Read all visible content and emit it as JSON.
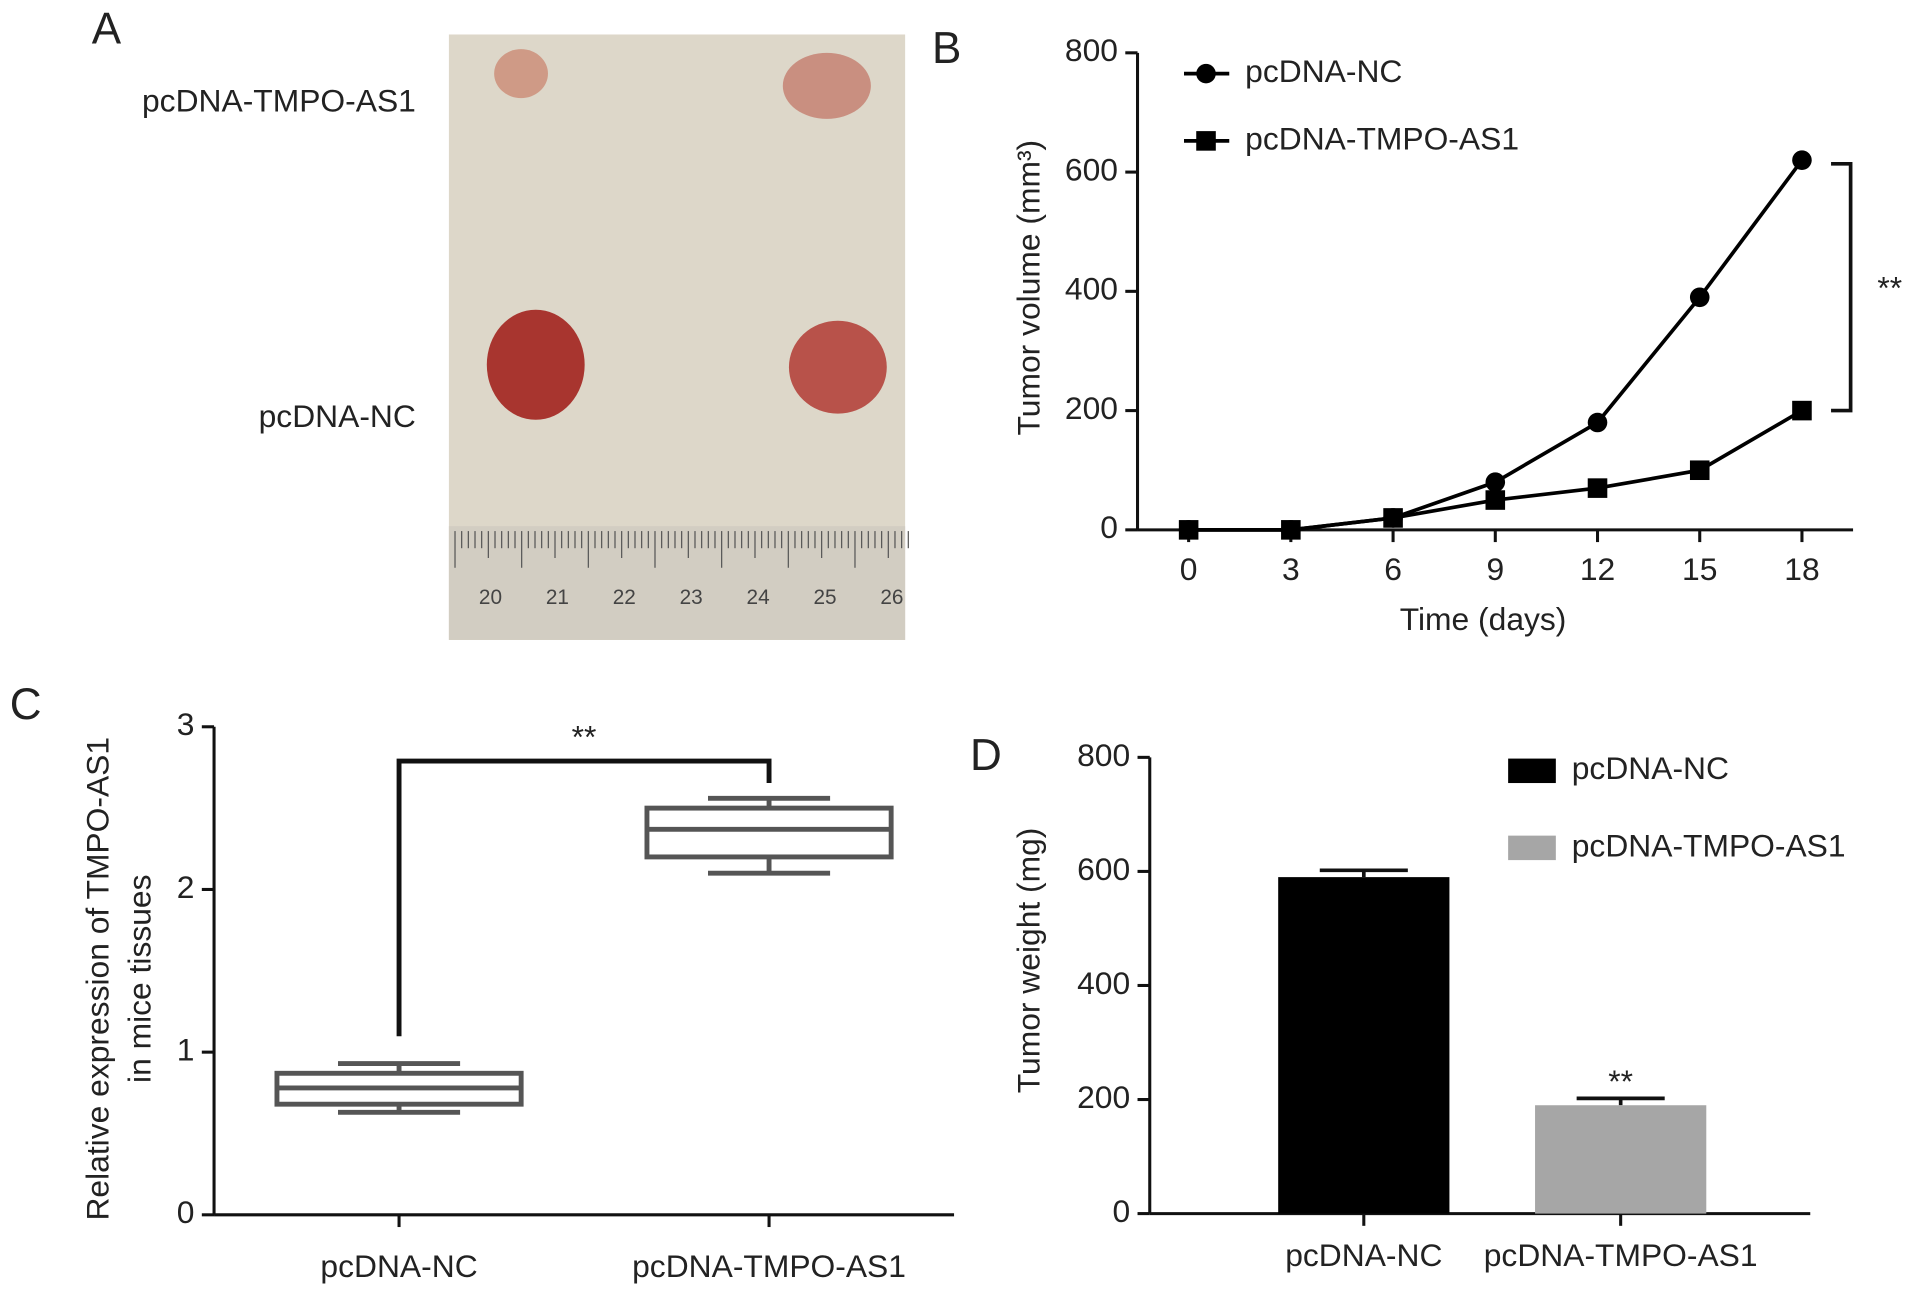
{
  "chart_data": [
    {
      "type": "photo",
      "panel": "A",
      "labels": [
        "pcDNA-TMPO-AS1",
        "pcDNA-NC"
      ],
      "ruler_labels": [
        20,
        21,
        22,
        23,
        24,
        25,
        26
      ]
    },
    {
      "type": "line",
      "panel": "B",
      "xlabel": "Time (days)",
      "ylabel": "Tumor volume (mm³)",
      "x": [
        0,
        3,
        6,
        9,
        12,
        15,
        18
      ],
      "series": [
        {
          "name": "pcDNA-NC",
          "color": "#000000",
          "marker": "circle",
          "values": [
            0,
            0,
            20,
            80,
            180,
            390,
            620
          ]
        },
        {
          "name": "pcDNA-TMPO-AS1",
          "color": "#000000",
          "marker": "square",
          "values": [
            0,
            0,
            20,
            50,
            70,
            100,
            200
          ]
        }
      ],
      "xlim": [
        -1.5,
        19.5
      ],
      "xticks": [
        0,
        3,
        6,
        9,
        12,
        15,
        18
      ],
      "ylim": [
        0,
        800
      ],
      "yticks": [
        0,
        200,
        400,
        600,
        800
      ],
      "legend": "upper left",
      "annotation": "**"
    },
    {
      "type": "box",
      "panel": "C",
      "ylabel": [
        "Relative expression of TMPO-AS1",
        "in mice tissues"
      ],
      "categories": [
        "pcDNA-NC",
        "pcDNA-TMPO-AS1"
      ],
      "boxes": [
        {
          "min": 0.63,
          "q1": 0.68,
          "median": 0.78,
          "q3": 0.87,
          "max": 0.93
        },
        {
          "min": 2.1,
          "q1": 2.2,
          "median": 2.37,
          "q3": 2.5,
          "max": 2.56
        }
      ],
      "color": "#555555",
      "ylim": [
        0,
        3
      ],
      "yticks": [
        0,
        1,
        2,
        3
      ],
      "annotation": "**"
    },
    {
      "type": "bar",
      "panel": "D",
      "ylabel": "Tumor weight (mg)",
      "categories": [
        "pcDNA-NC",
        "pcDNA-TMPO-AS1"
      ],
      "values": [
        590,
        190
      ],
      "errors": [
        12,
        12
      ],
      "colors": [
        "#000000",
        "#a6a6a6"
      ],
      "legend_entries": [
        "pcDNA-NC",
        "pcDNA-TMPO-AS1"
      ],
      "ylim": [
        0,
        800
      ],
      "yticks": [
        0,
        200,
        400,
        600,
        800
      ],
      "annotation": "**"
    }
  ]
}
